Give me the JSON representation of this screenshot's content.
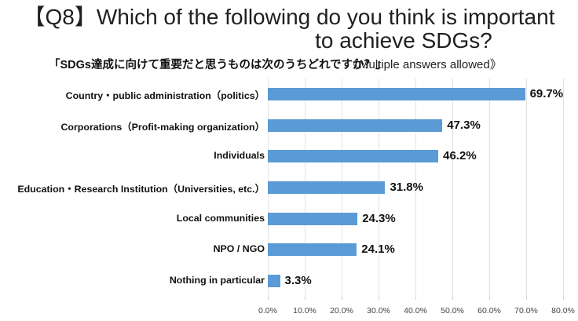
{
  "title": {
    "line1": "【Q8】Which of the following do you think is important",
    "line2": "to achieve SDGs?"
  },
  "subtitle": {
    "japanese": "「SDGs達成に向けて重要だと思うものは次のうちどれですか？」",
    "note": "《Multiple answers allowed》"
  },
  "chart_data": {
    "type": "bar",
    "orientation": "horizontal",
    "title": "【Q8】Which of the following do you think is important to achieve SDGs?",
    "categories": [
      "Country・public administration（politics）",
      "Corporations（Profit-making organization）",
      "Individuals",
      "Education・Research Institution（Universities, etc.）",
      "Local communities",
      "NPO / NGO",
      "Nothing in particular"
    ],
    "values": [
      69.7,
      47.3,
      46.2,
      31.8,
      24.3,
      24.1,
      3.3
    ],
    "value_labels": [
      "69.7%",
      "47.3%",
      "46.2%",
      "31.8%",
      "24.3%",
      "24.1%",
      "3.3%"
    ],
    "xlim": [
      0,
      80
    ],
    "x_tick_step": 10,
    "x_tick_labels": [
      "0.0%",
      "10.0%",
      "20.0%",
      "30.0%",
      "40.0%",
      "50.0%",
      "60.0%",
      "70.0%",
      "80.0%"
    ],
    "grid": true,
    "legend": false,
    "bar_color": "#5b9bd5",
    "gridline_color": "#e2e2e2",
    "axis_label_color": "#444444",
    "text_color": "#111111"
  }
}
